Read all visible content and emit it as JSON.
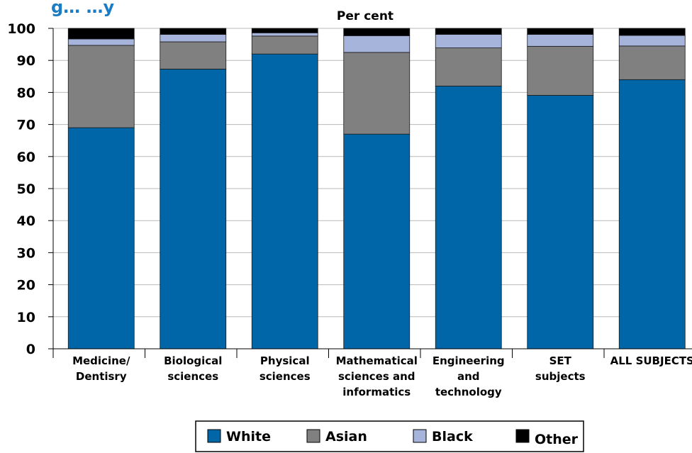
{
  "page_title_partial": "g… …y",
  "chart_data": {
    "type": "bar",
    "stacked": true,
    "title": "",
    "unit_label": "Per cent",
    "xlabel": "",
    "ylabel": "",
    "ylim": [
      0,
      100
    ],
    "yticks": [
      0,
      10,
      20,
      30,
      40,
      50,
      60,
      70,
      80,
      90,
      100
    ],
    "grid": true,
    "legend_position": "bottom",
    "categories": [
      [
        "Medicine/",
        "Dentisry"
      ],
      [
        "Biological",
        "sciences"
      ],
      [
        "Physical",
        "sciences"
      ],
      [
        "Mathematical",
        "sciences and",
        "informatics"
      ],
      [
        "Engineering",
        "and",
        "technology"
      ],
      [
        "SET",
        "subjects"
      ],
      [
        "ALL SUBJECTS"
      ]
    ],
    "series": [
      {
        "name": "White",
        "color": "#0066a8",
        "values": [
          69,
          87.3,
          92,
          67,
          82,
          79.1,
          84
        ]
      },
      {
        "name": "Asian",
        "color": "#808080",
        "values": [
          25.7,
          8.5,
          5.6,
          25.5,
          11.9,
          15.3,
          10.5
        ]
      },
      {
        "name": "Black",
        "color": "#a6b4dc",
        "values": [
          2,
          2.3,
          1,
          5.2,
          4.2,
          3.7,
          3.3
        ]
      },
      {
        "name": "Other",
        "color": "#000000",
        "values": [
          3.3,
          1.9,
          1.4,
          2.3,
          1.9,
          1.9,
          2.2
        ]
      }
    ]
  }
}
